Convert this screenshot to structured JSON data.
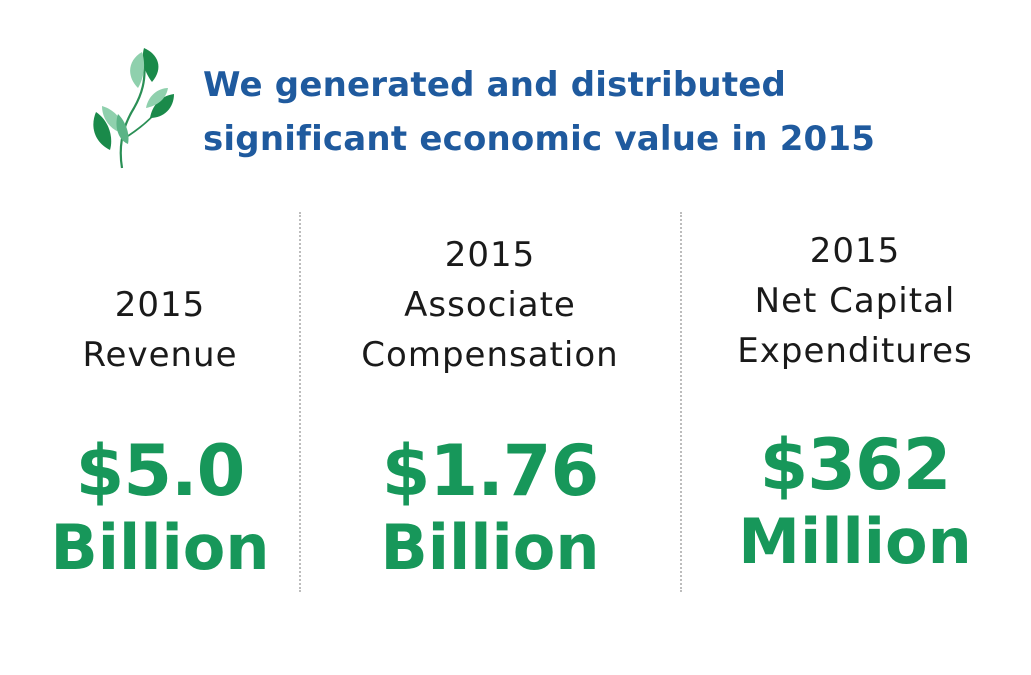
{
  "headline": {
    "line1": "We generated and distributed",
    "line2": "significant economic value in 2015"
  },
  "icon": "leaf-sprig-icon",
  "colors": {
    "headline": "#1f5a9e",
    "value": "#17975a",
    "leaf_dark": "#1a8a4a",
    "leaf_light": "#8fd0ad"
  },
  "stats": [
    {
      "label_lines": [
        "2015",
        "Revenue"
      ],
      "value": "$5.0",
      "unit": "Billion"
    },
    {
      "label_lines": [
        "2015",
        "Associate",
        "Compensation"
      ],
      "value": "$1.76",
      "unit": "Billion"
    },
    {
      "label_lines": [
        "2015",
        "Net Capital",
        "Expenditures"
      ],
      "value": "$362",
      "unit": "Million"
    }
  ]
}
